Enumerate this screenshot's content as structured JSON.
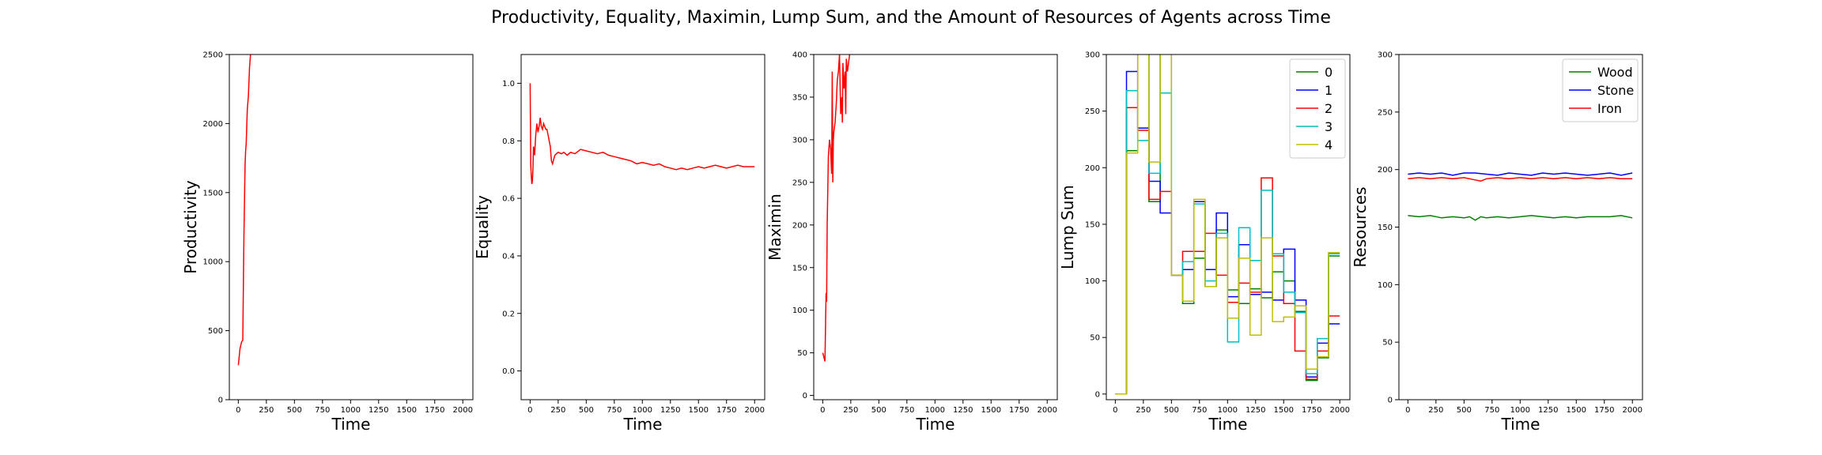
{
  "suptitle": "Productivity, Equality, Maximin, Lump Sum, and the Amount of Resources of Agents across Time",
  "chart_data": [
    {
      "type": "line",
      "xlabel": "Time",
      "ylabel": "Productivity",
      "xlim": [
        -80,
        2090
      ],
      "ylim": [
        0,
        2500
      ],
      "xticks": [
        0,
        250,
        500,
        750,
        1000,
        1250,
        1500,
        1750,
        2000
      ],
      "yticks": [
        0,
        500,
        1000,
        1500,
        2000,
        2500
      ],
      "series": [
        {
          "color": "#ff0000",
          "step": false,
          "x": [
            0,
            15,
            30,
            40,
            50,
            60,
            65,
            70,
            80,
            90,
            100,
            110
          ],
          "y": [
            250,
            370,
            420,
            430,
            1200,
            1700,
            1800,
            1850,
            2100,
            2200,
            2400,
            2520
          ]
        }
      ]
    },
    {
      "type": "line",
      "xlabel": "Time",
      "ylabel": "Equality",
      "xlim": [
        -80,
        2090
      ],
      "ylim": [
        -0.1,
        1.1
      ],
      "xticks": [
        0,
        250,
        500,
        750,
        1000,
        1250,
        1500,
        1750,
        2000
      ],
      "yticks": [
        0.0,
        0.2,
        0.4,
        0.6,
        0.8,
        1.0
      ],
      "series": [
        {
          "color": "#ff0000",
          "step": false,
          "x": [
            0,
            5,
            10,
            15,
            20,
            25,
            30,
            40,
            50,
            60,
            70,
            80,
            90,
            100,
            110,
            120,
            130,
            140,
            150,
            160,
            170,
            180,
            190,
            200,
            220,
            250,
            280,
            300,
            330,
            360,
            400,
            450,
            500,
            550,
            600,
            650,
            700,
            750,
            800,
            850,
            900,
            950,
            1000,
            1050,
            1100,
            1150,
            1200,
            1250,
            1300,
            1350,
            1400,
            1450,
            1500,
            1550,
            1600,
            1650,
            1700,
            1750,
            1800,
            1850,
            1900,
            1950,
            2000
          ],
          "y": [
            1.0,
            0.72,
            0.68,
            0.65,
            0.66,
            0.7,
            0.78,
            0.75,
            0.82,
            0.86,
            0.83,
            0.85,
            0.88,
            0.85,
            0.84,
            0.86,
            0.85,
            0.84,
            0.84,
            0.82,
            0.8,
            0.78,
            0.73,
            0.72,
            0.75,
            0.76,
            0.755,
            0.76,
            0.75,
            0.76,
            0.755,
            0.77,
            0.765,
            0.76,
            0.755,
            0.76,
            0.75,
            0.745,
            0.74,
            0.735,
            0.73,
            0.72,
            0.725,
            0.72,
            0.715,
            0.72,
            0.71,
            0.705,
            0.7,
            0.705,
            0.7,
            0.705,
            0.71,
            0.705,
            0.71,
            0.715,
            0.71,
            0.705,
            0.71,
            0.715,
            0.71,
            0.71,
            0.71
          ]
        }
      ]
    },
    {
      "type": "line",
      "xlabel": "Time",
      "ylabel": "Maximin",
      "xlim": [
        -80,
        2090
      ],
      "ylim": [
        -5,
        400
      ],
      "xticks": [
        0,
        250,
        500,
        750,
        1000,
        1250,
        1500,
        1750,
        2000
      ],
      "yticks": [
        0,
        50,
        100,
        150,
        200,
        250,
        300,
        350,
        400
      ],
      "series": [
        {
          "color": "#ff0000",
          "step": false,
          "x": [
            0,
            10,
            20,
            30,
            35,
            40,
            50,
            60,
            70,
            80,
            85,
            90,
            95,
            100,
            110,
            115,
            120,
            130,
            140,
            150,
            160,
            170,
            175,
            180,
            190,
            200,
            205,
            210,
            220,
            230,
            240,
            250
          ],
          "y": [
            50,
            45,
            40,
            120,
            110,
            200,
            280,
            300,
            290,
            260,
            380,
            250,
            300,
            310,
            320,
            330,
            340,
            370,
            380,
            400,
            330,
            350,
            320,
            390,
            360,
            380,
            330,
            395,
            380,
            390,
            400,
            405
          ]
        }
      ]
    },
    {
      "type": "line",
      "xlabel": "Time",
      "ylabel": "Lump Sum",
      "xlim": [
        -80,
        2090
      ],
      "ylim": [
        -5,
        300
      ],
      "xticks": [
        0,
        250,
        500,
        750,
        1000,
        1250,
        1500,
        1750,
        2000
      ],
      "yticks": [
        0,
        50,
        100,
        150,
        200,
        250,
        300
      ],
      "legend": "top-right",
      "series": [
        {
          "name": "0",
          "color": "#008000",
          "step": true,
          "x": [
            0,
            100,
            200,
            300,
            400,
            500,
            600,
            700,
            800,
            900,
            1000,
            1100,
            1200,
            1300,
            1400,
            1500,
            1600,
            1700,
            1800,
            1900,
            2000
          ],
          "y": [
            0,
            215,
            320,
            170,
            320,
            105,
            80,
            120,
            95,
            145,
            92,
            80,
            93,
            85,
            108,
            100,
            73,
            12,
            32,
            122,
            122
          ]
        },
        {
          "name": "1",
          "color": "#0000ff",
          "step": true,
          "x": [
            0,
            100,
            200,
            300,
            400,
            500,
            600,
            700,
            800,
            900,
            1000,
            1100,
            1200,
            1300,
            1400,
            1500,
            1600,
            1700,
            1800,
            1900,
            2000
          ],
          "y": [
            0,
            285,
            235,
            188,
            160,
            105,
            110,
            170,
            110,
            160,
            86,
            132,
            88,
            90,
            83,
            128,
            83,
            15,
            45,
            62,
            62
          ]
        },
        {
          "name": "2",
          "color": "#ff0000",
          "step": true,
          "x": [
            0,
            100,
            200,
            300,
            400,
            500,
            600,
            700,
            800,
            900,
            1000,
            1100,
            1200,
            1300,
            1400,
            1500,
            1600,
            1700,
            1800,
            1900,
            2000
          ],
          "y": [
            0,
            253,
            233,
            172,
            179,
            105,
            126,
            126,
            142,
            105,
            81,
            98,
            90,
            191,
            122,
            80,
            38,
            13,
            38,
            69,
            69
          ]
        },
        {
          "name": "3",
          "color": "#00bfbf",
          "step": true,
          "x": [
            0,
            100,
            200,
            300,
            400,
            500,
            600,
            700,
            800,
            900,
            1000,
            1100,
            1200,
            1300,
            1400,
            1500,
            1600,
            1700,
            1800,
            1900,
            2000
          ],
          "y": [
            0,
            268,
            224,
            195,
            266,
            105,
            117,
            168,
            100,
            142,
            46,
            147,
            118,
            180,
            124,
            90,
            72,
            18,
            49,
            124,
            124
          ]
        },
        {
          "name": "4",
          "color": "#bfbf00",
          "step": true,
          "x": [
            0,
            100,
            200,
            300,
            400,
            500,
            600,
            700,
            800,
            900,
            1000,
            1100,
            1200,
            1300,
            1400,
            1500,
            1600,
            1700,
            1800,
            1900,
            2000
          ],
          "y": [
            0,
            213,
            320,
            205,
            320,
            105,
            82,
            172,
            95,
            138,
            67,
            120,
            52,
            138,
            64,
            68,
            78,
            22,
            33,
            125,
            125
          ]
        }
      ]
    },
    {
      "type": "line",
      "xlabel": "Time",
      "ylabel": "Resources",
      "xlim": [
        -80,
        2090
      ],
      "ylim": [
        0,
        300
      ],
      "xticks": [
        0,
        250,
        500,
        750,
        1000,
        1250,
        1500,
        1750,
        2000
      ],
      "yticks": [
        0,
        50,
        100,
        150,
        200,
        250,
        300
      ],
      "legend": "top-right",
      "series": [
        {
          "name": "Wood",
          "color": "#008000",
          "step": false,
          "x": [
            0,
            100,
            200,
            300,
            400,
            500,
            550,
            600,
            650,
            700,
            800,
            900,
            1000,
            1100,
            1200,
            1300,
            1400,
            1500,
            1600,
            1700,
            1800,
            1900,
            2000
          ],
          "y": [
            160,
            159,
            160,
            158,
            159,
            158,
            159,
            156,
            159,
            158,
            159,
            158,
            159,
            160,
            159,
            158,
            159,
            158,
            159,
            159,
            159,
            160,
            158
          ]
        },
        {
          "name": "Stone",
          "color": "#0000ff",
          "step": false,
          "x": [
            0,
            100,
            200,
            300,
            400,
            500,
            600,
            700,
            800,
            900,
            1000,
            1100,
            1200,
            1300,
            1400,
            1500,
            1600,
            1700,
            1800,
            1900,
            2000
          ],
          "y": [
            196,
            197,
            196,
            197,
            195,
            197,
            197,
            196,
            195,
            197,
            196,
            195,
            197,
            196,
            197,
            196,
            195,
            196,
            197,
            195,
            197
          ]
        },
        {
          "name": "Iron",
          "color": "#ff0000",
          "step": false,
          "x": [
            0,
            100,
            200,
            300,
            400,
            500,
            600,
            650,
            700,
            800,
            900,
            1000,
            1100,
            1200,
            1300,
            1400,
            1500,
            1600,
            1700,
            1800,
            1900,
            2000
          ],
          "y": [
            192,
            193,
            192,
            193,
            192,
            193,
            191,
            190,
            192,
            193,
            192,
            193,
            192,
            193,
            192,
            193,
            192,
            193,
            192,
            193,
            192,
            192
          ]
        }
      ]
    }
  ]
}
